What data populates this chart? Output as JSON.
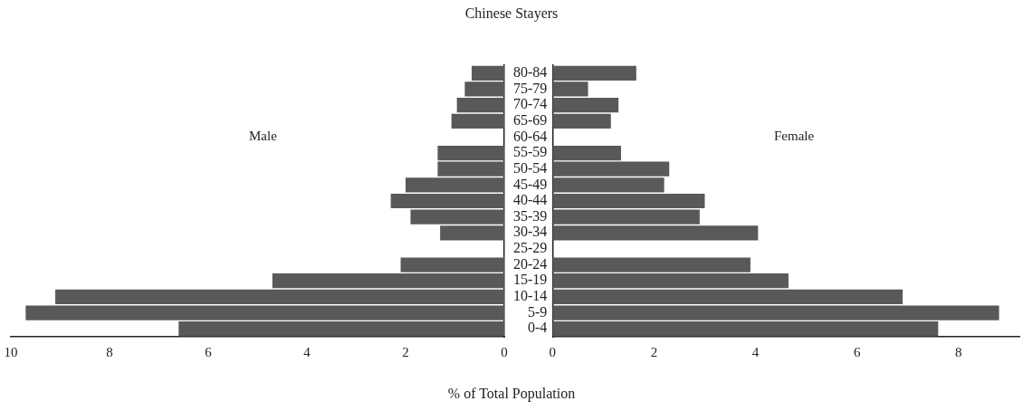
{
  "chart_data": [
    {
      "type": "bar",
      "orientation": "horizontal",
      "title": "Chinese Stayers",
      "xlabel": "% of Total Population",
      "annotations": [
        "Male"
      ],
      "categories": [
        null,
        null,
        null,
        null,
        null,
        null,
        null,
        null,
        null,
        null,
        null,
        null,
        null,
        null,
        null,
        null,
        null
      ],
      "series": [
        {
          "color": "#595959",
          "values": [
            0.66,
            0.8,
            0.96,
            1.07,
            null,
            1.35,
            1.35,
            2.0,
            2.3,
            1.9,
            1.3,
            null,
            2.1,
            4.7,
            9.1,
            9.7,
            6.6
          ]
        }
      ],
      "xlim": [
        10,
        0
      ],
      "xticks": [
        10,
        8,
        6,
        4,
        2,
        0
      ],
      "tick_labels": "x",
      "grid": false,
      "legend": false
    },
    {
      "type": "bar",
      "orientation": "horizontal",
      "annotations": [
        "Female"
      ],
      "categories": [
        "80-84",
        "75-79",
        "70-74",
        "65-69",
        "60-64",
        "55-59",
        "50-54",
        "45-49",
        "40-44",
        "35-39",
        "30-34",
        "25-29",
        "20-24",
        "15-19",
        "10-14",
        "5-9",
        "0-4"
      ],
      "series": [
        {
          "color": "#595959",
          "values": [
            1.65,
            0.7,
            1.3,
            1.15,
            null,
            1.35,
            2.3,
            2.2,
            3.0,
            2.9,
            4.05,
            null,
            3.9,
            4.65,
            6.9,
            8.8,
            7.6
          ]
        }
      ],
      "xlim": [
        0,
        9.2
      ],
      "xticks": [
        0,
        2,
        4,
        6,
        8
      ],
      "grid": false,
      "legend": false
    }
  ]
}
